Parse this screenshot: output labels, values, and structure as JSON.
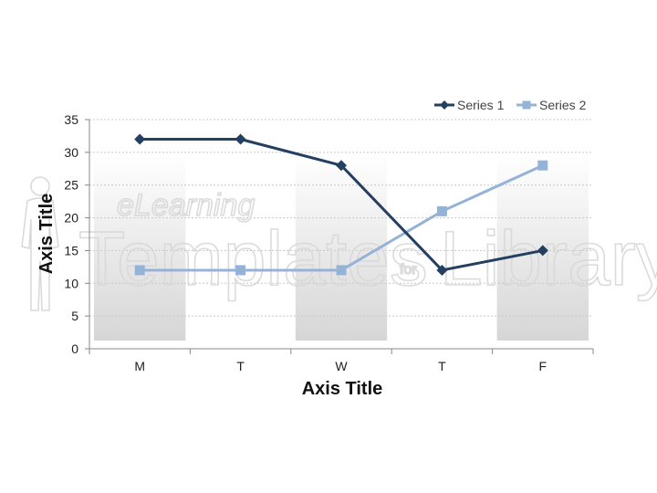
{
  "chart_data": {
    "type": "line",
    "categories": [
      "M",
      "T",
      "W",
      "T",
      "F"
    ],
    "series": [
      {
        "name": "Series 1",
        "values": [
          32,
          32,
          28,
          12,
          15
        ],
        "color": "#243f60",
        "marker": "diamond"
      },
      {
        "name": "Series 2",
        "values": [
          12,
          12,
          12,
          21,
          28
        ],
        "color": "#95b3d7",
        "marker": "square"
      }
    ],
    "xlabel": "Axis Title",
    "ylabel": "Axis Title",
    "ylim": [
      0,
      35
    ],
    "yticks": [
      0,
      5,
      10,
      15,
      20,
      25,
      30,
      35
    ],
    "grid": true,
    "legend": "top-right",
    "band_color": "#e0e0e0"
  },
  "watermark": {
    "top_text": "eLearning",
    "main_text": "Templates",
    "for_text": "for",
    "library_text": "Library"
  }
}
